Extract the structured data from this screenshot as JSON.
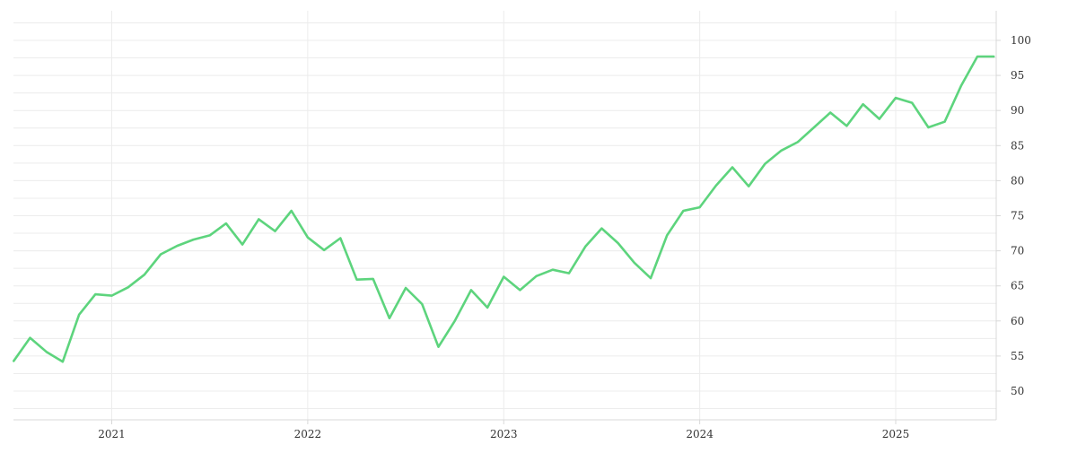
{
  "chart_data": {
    "type": "line",
    "title": "",
    "xlabel": "",
    "ylabel": "",
    "x_tick_labels": [
      "2021",
      "2022",
      "2023",
      "2024",
      "2025"
    ],
    "y_ticks": [
      50,
      55,
      60,
      65,
      70,
      75,
      80,
      85,
      90,
      95,
      100
    ],
    "ylim": [
      46.5,
      104
    ],
    "xlim": [
      "2020-07",
      "2025-07"
    ],
    "y_axis_position": "right",
    "grid": true,
    "legend": "none",
    "colors": {
      "line": "#5dd47d",
      "grid": "#ececec",
      "axis": "#d8d8d8",
      "text": "#333333"
    },
    "series": [
      {
        "x": [
          "2020-07",
          "2020-08",
          "2020-09",
          "2020-10",
          "2020-11",
          "2020-12",
          "2021-01",
          "2021-02",
          "2021-03",
          "2021-04",
          "2021-05",
          "2021-06",
          "2021-07",
          "2021-08",
          "2021-09",
          "2021-10",
          "2021-11",
          "2021-12",
          "2022-01",
          "2022-02",
          "2022-03",
          "2022-04",
          "2022-05",
          "2022-06",
          "2022-07",
          "2022-08",
          "2022-09",
          "2022-10",
          "2022-11",
          "2022-12",
          "2023-01",
          "2023-02",
          "2023-03",
          "2023-04",
          "2023-05",
          "2023-06",
          "2023-07",
          "2023-08",
          "2023-09",
          "2023-10",
          "2023-11",
          "2023-12",
          "2024-01",
          "2024-02",
          "2024-03",
          "2024-04",
          "2024-05",
          "2024-06",
          "2024-07",
          "2024-08",
          "2024-09",
          "2024-10",
          "2024-11",
          "2024-12",
          "2025-01",
          "2025-02",
          "2025-03",
          "2025-04",
          "2025-05",
          "2025-06",
          "2025-07"
        ],
        "values": [
          54.3,
          57.6,
          55.6,
          54.2,
          60.9,
          63.8,
          63.6,
          64.8,
          66.6,
          69.5,
          70.7,
          71.6,
          72.2,
          73.9,
          70.9,
          74.5,
          72.8,
          75.7,
          71.9,
          70.1,
          71.8,
          65.9,
          66.0,
          60.4,
          64.7,
          62.4,
          56.3,
          60.0,
          64.4,
          61.9,
          66.3,
          64.4,
          66.4,
          67.3,
          66.8,
          70.6,
          73.2,
          71.1,
          68.3,
          66.1,
          72.2,
          75.7,
          76.2,
          79.3,
          81.9,
          79.2,
          82.4,
          84.3,
          85.5,
          87.6,
          89.7,
          87.8,
          90.9,
          88.8,
          91.8,
          91.1,
          87.6,
          88.4,
          93.5,
          97.7,
          97.7
        ]
      }
    ]
  }
}
